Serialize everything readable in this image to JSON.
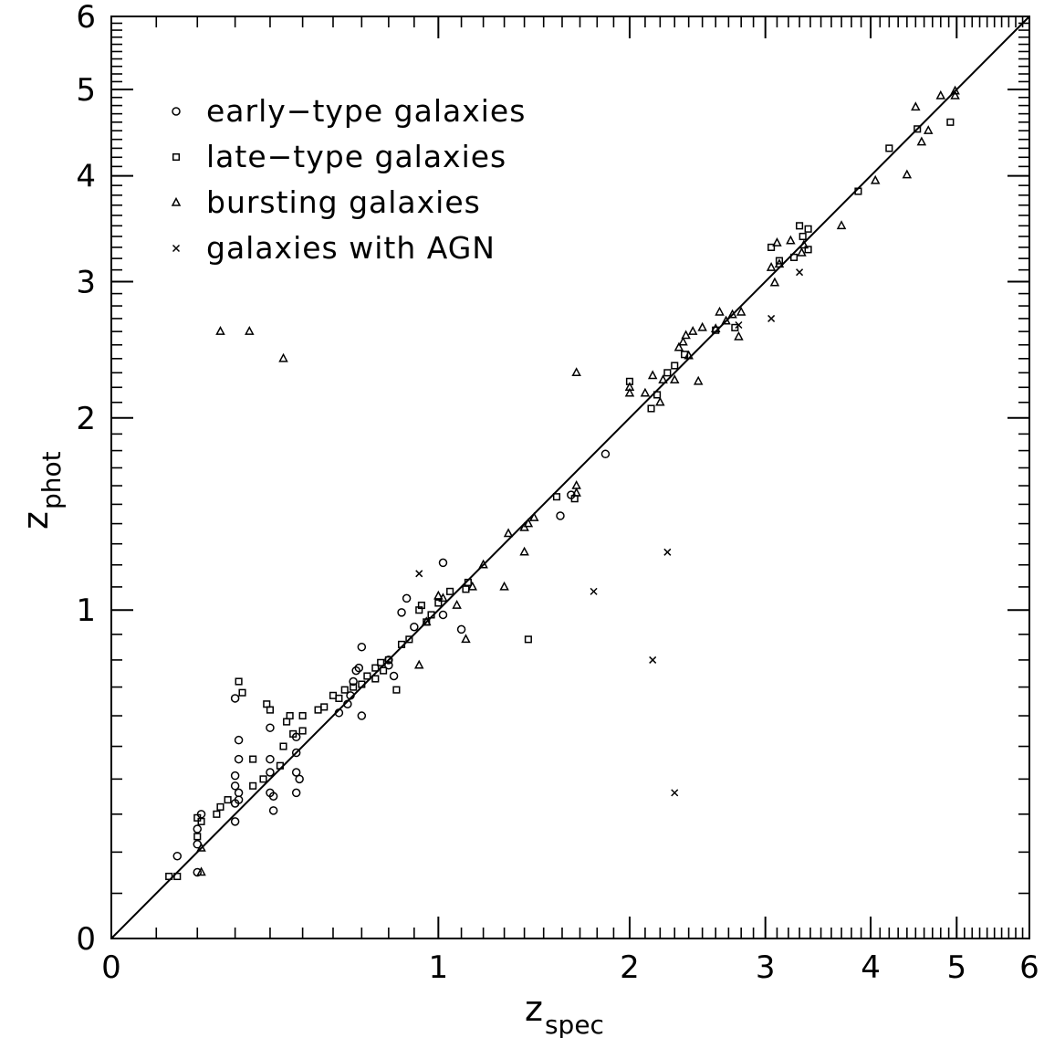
{
  "chart_data": {
    "type": "scatter",
    "xlabel": "z",
    "xlabel_sub": "spec",
    "ylabel": "z",
    "ylabel_sub": "phot",
    "scale": "log(1+z)",
    "xlim": [
      0,
      6
    ],
    "ylim": [
      0,
      6
    ],
    "x_ticks": [
      0,
      1,
      2,
      3,
      4,
      5,
      6
    ],
    "y_ticks": [
      0,
      1,
      2,
      3,
      4,
      5,
      6
    ],
    "reference_line": "z_phot = z_spec",
    "legend_position": "top-left",
    "series": [
      {
        "name": "early−type galaxies",
        "marker": "circle",
        "points": [
          [
            0.15,
            0.19
          ],
          [
            0.2,
            0.15
          ],
          [
            0.2,
            0.26
          ],
          [
            0.2,
            0.22
          ],
          [
            0.21,
            0.3
          ],
          [
            0.3,
            0.66
          ],
          [
            0.3,
            0.33
          ],
          [
            0.3,
            0.28
          ],
          [
            0.3,
            0.38
          ],
          [
            0.31,
            0.52
          ],
          [
            0.31,
            0.46
          ],
          [
            0.31,
            0.36
          ],
          [
            0.3,
            0.41
          ],
          [
            0.31,
            0.34
          ],
          [
            0.4,
            0.56
          ],
          [
            0.4,
            0.46
          ],
          [
            0.4,
            0.42
          ],
          [
            0.4,
            0.36
          ],
          [
            0.41,
            0.35
          ],
          [
            0.41,
            0.31
          ],
          [
            0.48,
            0.53
          ],
          [
            0.48,
            0.48
          ],
          [
            0.48,
            0.42
          ],
          [
            0.49,
            0.4
          ],
          [
            0.48,
            0.36
          ],
          [
            0.62,
            0.61
          ],
          [
            0.65,
            0.64
          ],
          [
            0.66,
            0.67
          ],
          [
            0.67,
            0.72
          ],
          [
            0.68,
            0.76
          ],
          [
            0.69,
            0.77
          ],
          [
            0.7,
            0.85
          ],
          [
            0.7,
            0.6
          ],
          [
            0.8,
            0.8
          ],
          [
            0.8,
            0.78
          ],
          [
            0.82,
            0.74
          ],
          [
            0.85,
            0.99
          ],
          [
            0.87,
            1.05
          ],
          [
            0.9,
            0.93
          ],
          [
            1.02,
            1.21
          ],
          [
            1.1,
            0.92
          ],
          [
            1.02,
            0.98
          ],
          [
            1.59,
            1.44
          ],
          [
            1.65,
            1.55
          ],
          [
            1.85,
            1.78
          ]
        ]
      },
      {
        "name": "late−type galaxies",
        "marker": "square",
        "points": [
          [
            0.13,
            0.14
          ],
          [
            0.15,
            0.14
          ],
          [
            0.2,
            0.24
          ],
          [
            0.2,
            0.29
          ],
          [
            0.21,
            0.28
          ],
          [
            0.25,
            0.3
          ],
          [
            0.26,
            0.32
          ],
          [
            0.28,
            0.34
          ],
          [
            0.31,
            0.72
          ],
          [
            0.32,
            0.68
          ],
          [
            0.35,
            0.38
          ],
          [
            0.35,
            0.46
          ],
          [
            0.38,
            0.4
          ],
          [
            0.39,
            0.64
          ],
          [
            0.4,
            0.62
          ],
          [
            0.43,
            0.44
          ],
          [
            0.44,
            0.5
          ],
          [
            0.45,
            0.58
          ],
          [
            0.46,
            0.6
          ],
          [
            0.47,
            0.54
          ],
          [
            0.5,
            0.55
          ],
          [
            0.5,
            0.6
          ],
          [
            0.55,
            0.62
          ],
          [
            0.57,
            0.63
          ],
          [
            0.6,
            0.67
          ],
          [
            0.62,
            0.66
          ],
          [
            0.64,
            0.69
          ],
          [
            0.67,
            0.7
          ],
          [
            0.7,
            0.71
          ],
          [
            0.72,
            0.74
          ],
          [
            0.75,
            0.77
          ],
          [
            0.75,
            0.73
          ],
          [
            0.77,
            0.79
          ],
          [
            0.78,
            0.76
          ],
          [
            0.8,
            0.8
          ],
          [
            0.83,
            0.69
          ],
          [
            0.85,
            0.86
          ],
          [
            0.88,
            0.88
          ],
          [
            0.92,
            1.0
          ],
          [
            0.93,
            1.02
          ],
          [
            0.95,
            0.95
          ],
          [
            0.97,
            0.98
          ],
          [
            1.0,
            1.03
          ],
          [
            1.05,
            1.08
          ],
          [
            1.12,
            1.09
          ],
          [
            1.13,
            1.12
          ],
          [
            1.42,
            0.88
          ],
          [
            1.57,
            1.54
          ],
          [
            1.67,
            1.53
          ],
          [
            2.0,
            2.24
          ],
          [
            2.14,
            2.06
          ],
          [
            2.18,
            2.15
          ],
          [
            2.25,
            2.3
          ],
          [
            2.3,
            2.35
          ],
          [
            2.37,
            2.43
          ],
          [
            2.6,
            2.61
          ],
          [
            2.75,
            2.63
          ],
          [
            3.05,
            3.3
          ],
          [
            3.12,
            3.18
          ],
          [
            3.25,
            3.21
          ],
          [
            3.3,
            3.5
          ],
          [
            3.33,
            3.4
          ],
          [
            3.38,
            3.47
          ],
          [
            3.38,
            3.28
          ],
          [
            3.87,
            3.84
          ],
          [
            4.2,
            4.3
          ],
          [
            4.52,
            4.52
          ],
          [
            4.92,
            4.6
          ]
        ]
      },
      {
        "name": "bursting galaxies",
        "marker": "triangle",
        "points": [
          [
            0.21,
            0.21
          ],
          [
            0.21,
            0.15
          ],
          [
            0.26,
            2.6
          ],
          [
            0.34,
            2.6
          ],
          [
            0.44,
            2.4
          ],
          [
            0.92,
            0.78
          ],
          [
            0.95,
            0.95
          ],
          [
            1.0,
            1.06
          ],
          [
            1.02,
            1.05
          ],
          [
            1.08,
            1.02
          ],
          [
            1.12,
            0.88
          ],
          [
            1.15,
            1.1
          ],
          [
            1.2,
            1.2
          ],
          [
            1.3,
            1.1
          ],
          [
            1.32,
            1.35
          ],
          [
            1.4,
            1.38
          ],
          [
            1.42,
            1.4
          ],
          [
            1.45,
            1.43
          ],
          [
            1.4,
            1.26
          ],
          [
            1.68,
            1.6
          ],
          [
            1.68,
            1.56
          ],
          [
            1.68,
            2.3
          ],
          [
            2.0,
            2.16
          ],
          [
            2.0,
            2.2
          ],
          [
            2.1,
            2.16
          ],
          [
            2.15,
            2.28
          ],
          [
            2.2,
            2.1
          ],
          [
            2.22,
            2.25
          ],
          [
            2.3,
            2.25
          ],
          [
            2.33,
            2.48
          ],
          [
            2.36,
            2.52
          ],
          [
            2.38,
            2.57
          ],
          [
            2.4,
            2.42
          ],
          [
            2.43,
            2.6
          ],
          [
            2.47,
            2.24
          ],
          [
            2.5,
            2.63
          ],
          [
            2.6,
            2.62
          ],
          [
            2.63,
            2.75
          ],
          [
            2.68,
            2.68
          ],
          [
            2.73,
            2.73
          ],
          [
            2.78,
            2.56
          ],
          [
            2.8,
            2.75
          ],
          [
            3.05,
            3.12
          ],
          [
            3.08,
            2.99
          ],
          [
            3.1,
            3.34
          ],
          [
            3.12,
            3.15
          ],
          [
            3.22,
            3.36
          ],
          [
            3.32,
            3.25
          ],
          [
            3.34,
            3.32
          ],
          [
            3.7,
            3.5
          ],
          [
            4.05,
            3.95
          ],
          [
            4.4,
            4.01
          ],
          [
            4.5,
            4.78
          ],
          [
            4.57,
            4.37
          ],
          [
            4.65,
            4.5
          ],
          [
            4.8,
            4.92
          ],
          [
            4.98,
            4.98
          ],
          [
            4.98,
            4.92
          ]
        ]
      },
      {
        "name": "galaxies with AGN",
        "marker": "cross",
        "points": [
          [
            0.92,
            1.16
          ],
          [
            1.78,
            1.08
          ],
          [
            2.15,
            0.8
          ],
          [
            2.25,
            1.26
          ],
          [
            2.3,
            0.36
          ],
          [
            2.78,
            2.65
          ],
          [
            3.05,
            2.7
          ],
          [
            3.3,
            3.08
          ]
        ]
      }
    ]
  }
}
